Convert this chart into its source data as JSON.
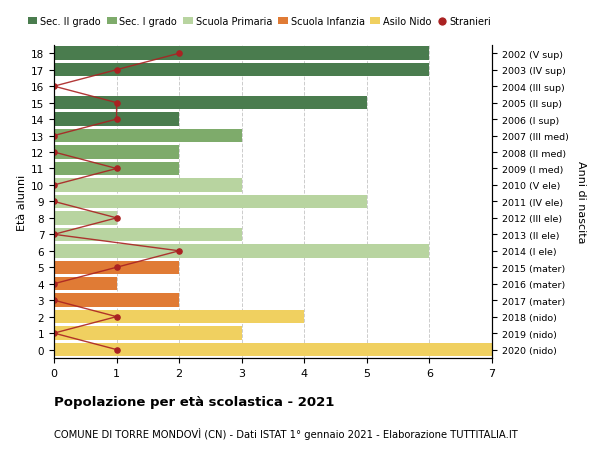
{
  "ages": [
    18,
    17,
    16,
    15,
    14,
    13,
    12,
    11,
    10,
    9,
    8,
    7,
    6,
    5,
    4,
    3,
    2,
    1,
    0
  ],
  "right_labels": [
    "2002 (V sup)",
    "2003 (IV sup)",
    "2004 (III sup)",
    "2005 (II sup)",
    "2006 (I sup)",
    "2007 (III med)",
    "2008 (II med)",
    "2009 (I med)",
    "2010 (V ele)",
    "2011 (IV ele)",
    "2012 (III ele)",
    "2013 (II ele)",
    "2014 (I ele)",
    "2015 (mater)",
    "2016 (mater)",
    "2017 (mater)",
    "2018 (nido)",
    "2019 (nido)",
    "2020 (nido)"
  ],
  "bar_values": [
    6,
    6,
    0,
    5,
    2,
    3,
    2,
    2,
    3,
    5,
    1,
    3,
    6,
    2,
    1,
    2,
    4,
    3,
    7
  ],
  "bar_colors": [
    "#4a7c4e",
    "#4a7c4e",
    "#4a7c4e",
    "#4a7c4e",
    "#4a7c4e",
    "#7eab6b",
    "#7eab6b",
    "#7eab6b",
    "#b8d4a0",
    "#b8d4a0",
    "#b8d4a0",
    "#b8d4a0",
    "#b8d4a0",
    "#e07b35",
    "#e07b35",
    "#e07b35",
    "#f0d060",
    "#f0d060",
    "#f0d060"
  ],
  "stranieri_values": [
    2,
    1,
    0,
    1,
    1,
    0,
    0,
    1,
    0,
    0,
    1,
    0,
    2,
    1,
    0,
    0,
    1,
    0,
    1
  ],
  "legend_labels": [
    "Sec. II grado",
    "Sec. I grado",
    "Scuola Primaria",
    "Scuola Infanzia",
    "Asilo Nido",
    "Stranieri"
  ],
  "legend_colors": [
    "#4a7c4e",
    "#7eab6b",
    "#b8d4a0",
    "#e07b35",
    "#f0d060",
    "#aa2222"
  ],
  "title_bold": "Popolazione per età scolastica - 2021",
  "subtitle": "COMUNE DI TORRE MONDOVÌ (CN) - Dati ISTAT 1° gennaio 2021 - Elaborazione TUTTITALIA.IT",
  "ylabel_left": "Età alunni",
  "ylabel_right": "Anni di nascita",
  "xlim": [
    0,
    7
  ],
  "stranieri_color": "#aa2222",
  "bg_color": "#ffffff",
  "grid_color": "#cccccc"
}
